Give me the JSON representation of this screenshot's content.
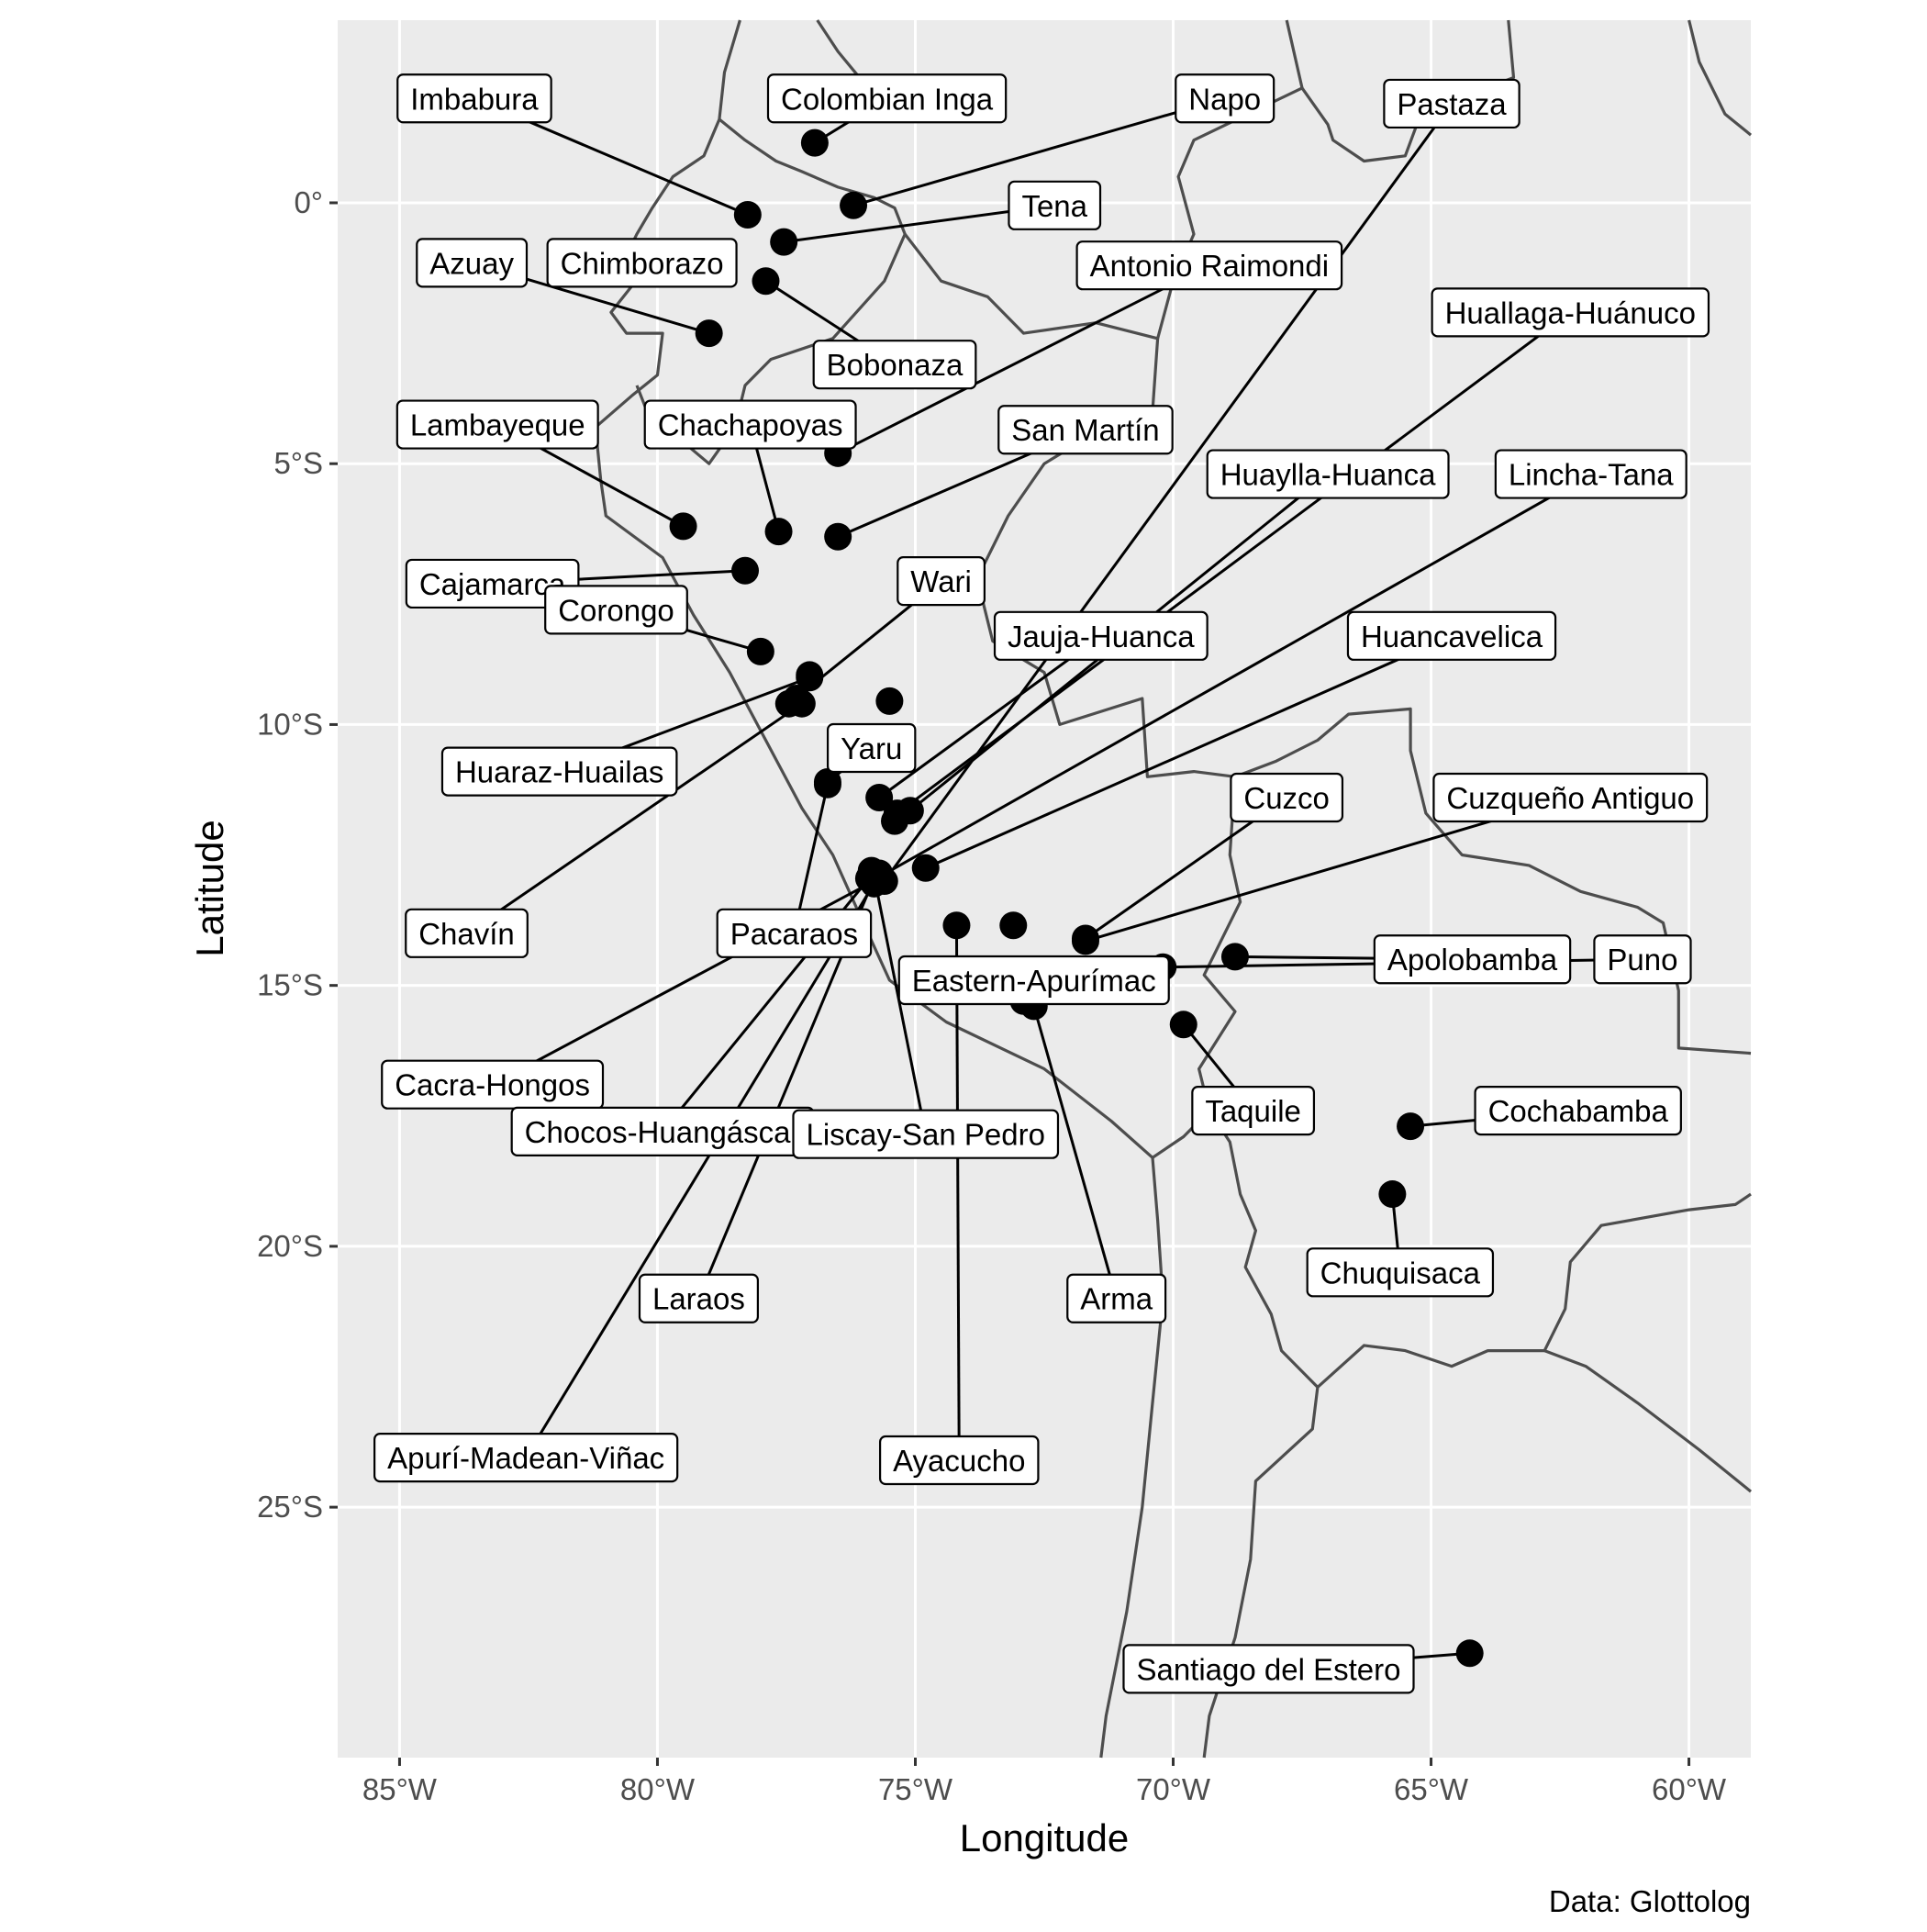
{
  "chart_data": {
    "type": "scatter",
    "map": "South America (Andes region) with country borders",
    "xlabel": "Longitude",
    "ylabel": "Latitude",
    "xlim": [
      -86.2,
      -58.8
    ],
    "ylim": [
      -29.8,
      3.5
    ],
    "x_ticks": [
      {
        "value": -85,
        "label": "85°W"
      },
      {
        "value": -80,
        "label": "80°W"
      },
      {
        "value": -75,
        "label": "75°W"
      },
      {
        "value": -70,
        "label": "70°W"
      },
      {
        "value": -65,
        "label": "65°W"
      },
      {
        "value": -60,
        "label": "60°W"
      }
    ],
    "y_ticks": [
      {
        "value": 0,
        "label": "0°"
      },
      {
        "value": -5,
        "label": "5°S"
      },
      {
        "value": -10,
        "label": "10°S"
      },
      {
        "value": -15,
        "label": "15°S"
      },
      {
        "value": -20,
        "label": "20°S"
      },
      {
        "value": -25,
        "label": "25°S"
      }
    ],
    "grid": true,
    "caption": "Data: Glottolog",
    "colors": {
      "panel": "#ebebeb",
      "grid": "#ffffff",
      "border": "#4d4d4d",
      "point": "#000000",
      "label_bg": "#ffffff"
    },
    "points": [
      {
        "name": "Colombian Inga",
        "lon": -76.95,
        "lat": 1.15,
        "label_lon": -75.55,
        "label_lat": 2.0
      },
      {
        "name": "Imbabura",
        "lon": -78.25,
        "lat": -0.23,
        "label_lon": -83.55,
        "label_lat": 2.0
      },
      {
        "name": "Napo",
        "lon": -76.2,
        "lat": -0.05,
        "label_lon": -69.0,
        "label_lat": 2.0
      },
      {
        "name": "Pastaza",
        "lon": -75.6,
        "lat": -13.0,
        "label_lon": -64.6,
        "label_lat": 1.9
      },
      {
        "name": "Tena",
        "lon": -77.55,
        "lat": -0.75,
        "label_lon": -72.3,
        "label_lat": -0.05
      },
      {
        "name": "Azuay",
        "lon": -79.0,
        "lat": -2.5,
        "label_lon": -83.6,
        "label_lat": -1.15
      },
      {
        "name": "Chimborazo",
        "lon": -78.85,
        "lat": -1.35,
        "label_lon": -80.3,
        "label_lat": -1.15
      },
      {
        "name": "Antonio Raimondi",
        "lon": -76.5,
        "lat": -4.8,
        "label_lon": -69.3,
        "label_lat": -1.2
      },
      {
        "name": "Bobonaza",
        "lon": -77.9,
        "lat": -1.5,
        "label_lon": -75.4,
        "label_lat": -3.1
      },
      {
        "name": "Huallaga-Huánuco",
        "lon": -75.35,
        "lat": -11.7,
        "label_lon": -62.3,
        "label_lat": -2.1
      },
      {
        "name": "Lambayeque",
        "lon": -79.5,
        "lat": -6.2,
        "label_lon": -83.1,
        "label_lat": -4.25
      },
      {
        "name": "Chachapoyas",
        "lon": -77.65,
        "lat": -6.3,
        "label_lon": -78.2,
        "label_lat": -4.25
      },
      {
        "name": "San Martín",
        "lon": -76.5,
        "lat": -6.4,
        "label_lon": -71.7,
        "label_lat": -4.35
      },
      {
        "name": "Huaylla-Huanca",
        "lon": -75.1,
        "lat": -11.65,
        "label_lon": -67.0,
        "label_lat": -5.2
      },
      {
        "name": "Lincha-Tana",
        "lon": -75.75,
        "lat": -12.95,
        "label_lon": -61.9,
        "label_lat": -5.2
      },
      {
        "name": "Cajamarca",
        "lon": -78.3,
        "lat": -7.05,
        "label_lon": -83.2,
        "label_lat": -7.3
      },
      {
        "name": "Wari",
        "lon": -77.45,
        "lat": -9.6,
        "label_lon": -74.5,
        "label_lat": -7.25
      },
      {
        "name": "Corongo",
        "lon": -78.0,
        "lat": -8.6,
        "label_lon": -80.8,
        "label_lat": -7.8
      },
      {
        "name": "Jauja-Huanca",
        "lon": -75.7,
        "lat": -11.4,
        "label_lon": -71.4,
        "label_lat": -8.3
      },
      {
        "name": "Huancavelica",
        "lon": -74.8,
        "lat": -12.75,
        "label_lon": -64.6,
        "label_lat": -8.3
      },
      {
        "name": "Huaraz-Huailas",
        "lon": -77.05,
        "lat": -9.1,
        "label_lon": -81.9,
        "label_lat": -10.9
      },
      {
        "name": "Yaru",
        "lon": -76.7,
        "lat": -11.1,
        "label_lon": -75.85,
        "label_lat": -10.45
      },
      {
        "name": "Cuzco",
        "lon": -71.7,
        "lat": -14.1,
        "label_lon": -67.8,
        "label_lat": -11.4
      },
      {
        "name": "Cuzqueño Antiguo",
        "lon": -71.7,
        "lat": -14.15,
        "label_lon": -62.3,
        "label_lat": -11.4
      },
      {
        "name": "Chavín",
        "lon": -77.2,
        "lat": -9.6,
        "label_lon": -83.7,
        "label_lat": -14.0
      },
      {
        "name": "Pacaraos",
        "lon": -76.7,
        "lat": -11.15,
        "label_lon": -77.35,
        "label_lat": -14.0
      },
      {
        "name": "Apolobamba",
        "lon": -68.8,
        "lat": -14.45,
        "label_lon": -64.2,
        "label_lat": -14.5
      },
      {
        "name": "Puno",
        "lon": -70.2,
        "lat": -14.65,
        "label_lon": -60.9,
        "label_lat": -14.5
      },
      {
        "name": "Eastern-Apurímac",
        "lon": -72.9,
        "lat": -15.3,
        "label_lon": -72.7,
        "label_lat": -14.9
      },
      {
        "name": "Cacra-Hongos",
        "lon": -75.8,
        "lat": -13.0,
        "label_lon": -83.2,
        "label_lat": -16.9
      },
      {
        "name": "Taquile",
        "lon": -69.8,
        "lat": -15.75,
        "label_lon": -68.45,
        "label_lat": -17.4
      },
      {
        "name": "Cochabamba",
        "lon": -65.4,
        "lat": -17.7,
        "label_lon": -62.15,
        "label_lat": -17.4
      },
      {
        "name": "Chocos-Huangáscar",
        "lon": -75.9,
        "lat": -12.95,
        "label_lon": -79.9,
        "label_lat": -17.8
      },
      {
        "name": "Liscay-San Pedro",
        "lon": -75.8,
        "lat": -12.9,
        "label_lon": -74.8,
        "label_lat": -17.85
      },
      {
        "name": "Chuquisaca",
        "lon": -65.75,
        "lat": -19.0,
        "label_lon": -65.6,
        "label_lat": -20.5
      },
      {
        "name": "Laraos",
        "lon": -75.8,
        "lat": -12.95,
        "label_lon": -79.2,
        "label_lat": -21.0
      },
      {
        "name": "Arma",
        "lon": -72.7,
        "lat": -15.4,
        "label_lon": -71.1,
        "label_lat": -21.0
      },
      {
        "name": "Apurí-Madean-Viñac",
        "lon": -75.8,
        "lat": -13.05,
        "label_lon": -82.55,
        "label_lat": -24.05
      },
      {
        "name": "Ayacucho",
        "lon": -74.2,
        "lat": -13.85,
        "label_lon": -74.15,
        "label_lat": -24.1
      },
      {
        "name": "Santiago del Estero",
        "lon": -64.25,
        "lat": -27.8,
        "label_lon": -68.15,
        "label_lat": -28.1
      },
      {
        "name": "",
        "lon": -73.1,
        "lat": -13.85
      },
      {
        "name": "",
        "lon": -77.3,
        "lat": -9.5
      },
      {
        "name": "",
        "lon": -75.5,
        "lat": -9.55
      },
      {
        "name": "",
        "lon": -77.05,
        "lat": -9.05
      },
      {
        "name": "",
        "lon": -75.4,
        "lat": -11.85
      },
      {
        "name": "",
        "lon": -75.85,
        "lat": -12.8
      },
      {
        "name": "",
        "lon": -75.7,
        "lat": -12.85
      }
    ],
    "borders": [
      [
        [
          -78.4,
          3.5
        ],
        [
          -78.7,
          2.5
        ],
        [
          -78.8,
          1.6
        ],
        [
          -79.1,
          0.9
        ],
        [
          -79.7,
          0.5
        ],
        [
          -80.1,
          -0.1
        ],
        [
          -80.4,
          -0.6
        ],
        [
          -80.7,
          -1.2
        ],
        [
          -80.5,
          -1.6
        ],
        [
          -80.9,
          -2.1
        ],
        [
          -80.6,
          -2.5
        ],
        [
          -79.9,
          -2.5
        ],
        [
          -80.0,
          -3.3
        ],
        [
          -80.5,
          -3.7
        ],
        [
          -81.2,
          -4.3
        ],
        [
          -81.1,
          -5.3
        ],
        [
          -81.0,
          -6.0
        ],
        [
          -79.9,
          -6.8
        ],
        [
          -79.3,
          -7.9
        ],
        [
          -78.6,
          -9.0
        ],
        [
          -77.9,
          -10.3
        ],
        [
          -77.2,
          -11.6
        ],
        [
          -76.6,
          -12.5
        ],
        [
          -76.1,
          -13.6
        ],
        [
          -75.5,
          -14.9
        ],
        [
          -74.4,
          -15.7
        ],
        [
          -72.5,
          -16.6
        ],
        [
          -71.2,
          -17.6
        ],
        [
          -70.4,
          -18.3
        ],
        [
          -70.3,
          -19.5
        ],
        [
          -70.2,
          -21.0
        ],
        [
          -70.4,
          -23.0
        ],
        [
          -70.6,
          -25.0
        ],
        [
          -70.9,
          -27.0
        ],
        [
          -71.3,
          -29.0
        ],
        [
          -71.4,
          -29.8
        ]
      ],
      [
        [
          -78.8,
          1.6
        ],
        [
          -78.3,
          1.2
        ],
        [
          -77.7,
          0.8
        ],
        [
          -77.2,
          0.6
        ],
        [
          -76.5,
          0.3
        ],
        [
          -75.8,
          0.1
        ],
        [
          -75.4,
          -0.1
        ],
        [
          -75.2,
          -0.6
        ],
        [
          -75.6,
          -1.5
        ],
        [
          -76.6,
          -2.6
        ],
        [
          -77.8,
          -3.0
        ],
        [
          -78.3,
          -3.5
        ],
        [
          -78.5,
          -4.3
        ],
        [
          -79.0,
          -5.0
        ],
        [
          -79.6,
          -4.5
        ],
        [
          -80.2,
          -4.0
        ],
        [
          -80.4,
          -3.5
        ]
      ],
      [
        [
          -75.2,
          -0.6
        ],
        [
          -74.5,
          -1.5
        ],
        [
          -73.6,
          -1.8
        ],
        [
          -72.9,
          -2.5
        ],
        [
          -71.5,
          -2.3
        ],
        [
          -70.3,
          -2.6
        ],
        [
          -70.4,
          -4.0
        ],
        [
          -71.5,
          -4.4
        ],
        [
          -72.5,
          -5.0
        ],
        [
          -73.2,
          -6.0
        ],
        [
          -73.8,
          -7.2
        ],
        [
          -73.5,
          -8.4
        ],
        [
          -72.5,
          -9.0
        ],
        [
          -72.2,
          -10.0
        ],
        [
          -70.6,
          -9.5
        ],
        [
          -70.5,
          -11.0
        ],
        [
          -69.6,
          -10.9
        ],
        [
          -68.8,
          -11.0
        ],
        [
          -68.9,
          -12.5
        ],
        [
          -68.7,
          -13.4
        ],
        [
          -69.4,
          -14.8
        ],
        [
          -68.8,
          -15.5
        ],
        [
          -69.5,
          -16.6
        ],
        [
          -69.3,
          -17.4
        ],
        [
          -69.8,
          -17.9
        ],
        [
          -70.4,
          -18.3
        ]
      ],
      [
        [
          -69.3,
          -17.4
        ],
        [
          -68.9,
          -18.0
        ],
        [
          -68.7,
          -19.0
        ],
        [
          -68.4,
          -19.7
        ],
        [
          -68.6,
          -20.4
        ],
        [
          -68.1,
          -21.3
        ],
        [
          -67.9,
          -22.0
        ],
        [
          -67.2,
          -22.7
        ],
        [
          -67.3,
          -23.5
        ],
        [
          -68.4,
          -24.5
        ],
        [
          -68.5,
          -26.0
        ],
        [
          -68.8,
          -27.5
        ],
        [
          -69.3,
          -29.0
        ],
        [
          -69.4,
          -29.8
        ]
      ],
      [
        [
          -67.2,
          -22.7
        ],
        [
          -66.3,
          -21.9
        ],
        [
          -65.5,
          -22.0
        ],
        [
          -64.6,
          -22.3
        ],
        [
          -63.9,
          -22.0
        ],
        [
          -62.8,
          -22.0
        ],
        [
          -62.4,
          -21.2
        ],
        [
          -62.3,
          -20.3
        ],
        [
          -61.7,
          -19.6
        ],
        [
          -60.0,
          -19.3
        ],
        [
          -59.1,
          -19.2
        ],
        [
          -58.8,
          -19.0
        ]
      ],
      [
        [
          -68.8,
          -11.0
        ],
        [
          -68.0,
          -10.7
        ],
        [
          -67.2,
          -10.3
        ],
        [
          -66.6,
          -9.8
        ],
        [
          -65.4,
          -9.7
        ],
        [
          -65.4,
          -10.5
        ],
        [
          -65.1,
          -11.7
        ],
        [
          -64.4,
          -12.5
        ],
        [
          -63.1,
          -12.7
        ],
        [
          -62.1,
          -13.2
        ],
        [
          -61.0,
          -13.5
        ],
        [
          -60.5,
          -13.8
        ],
        [
          -60.2,
          -15.1
        ],
        [
          -60.2,
          -16.2
        ],
        [
          -58.8,
          -16.3
        ]
      ],
      [
        [
          -62.8,
          -22.0
        ],
        [
          -62.0,
          -22.3
        ],
        [
          -61.0,
          -23.0
        ],
        [
          -59.8,
          -23.9
        ],
        [
          -58.8,
          -24.7
        ]
      ],
      [
        [
          -70.3,
          -2.6
        ],
        [
          -70.0,
          -1.5
        ],
        [
          -69.6,
          -0.6
        ],
        [
          -69.9,
          0.5
        ],
        [
          -69.6,
          1.2
        ],
        [
          -67.5,
          2.2
        ],
        [
          -67.0,
          1.5
        ],
        [
          -66.9,
          1.2
        ],
        [
          -66.3,
          0.8
        ],
        [
          -65.5,
          0.9
        ],
        [
          -65.2,
          1.7
        ],
        [
          -64.2,
          2.1
        ],
        [
          -63.4,
          2.4
        ],
        [
          -63.5,
          3.5
        ]
      ],
      [
        [
          -67.5,
          2.2
        ],
        [
          -67.8,
          3.5
        ]
      ],
      [
        [
          -60.0,
          3.5
        ],
        [
          -59.8,
          2.7
        ],
        [
          -59.3,
          1.7
        ],
        [
          -58.8,
          1.3
        ]
      ],
      [
        [
          -76.9,
          3.5
        ],
        [
          -76.5,
          2.9
        ],
        [
          -76.0,
          2.3
        ],
        [
          -75.3,
          1.9
        ]
      ]
    ]
  }
}
